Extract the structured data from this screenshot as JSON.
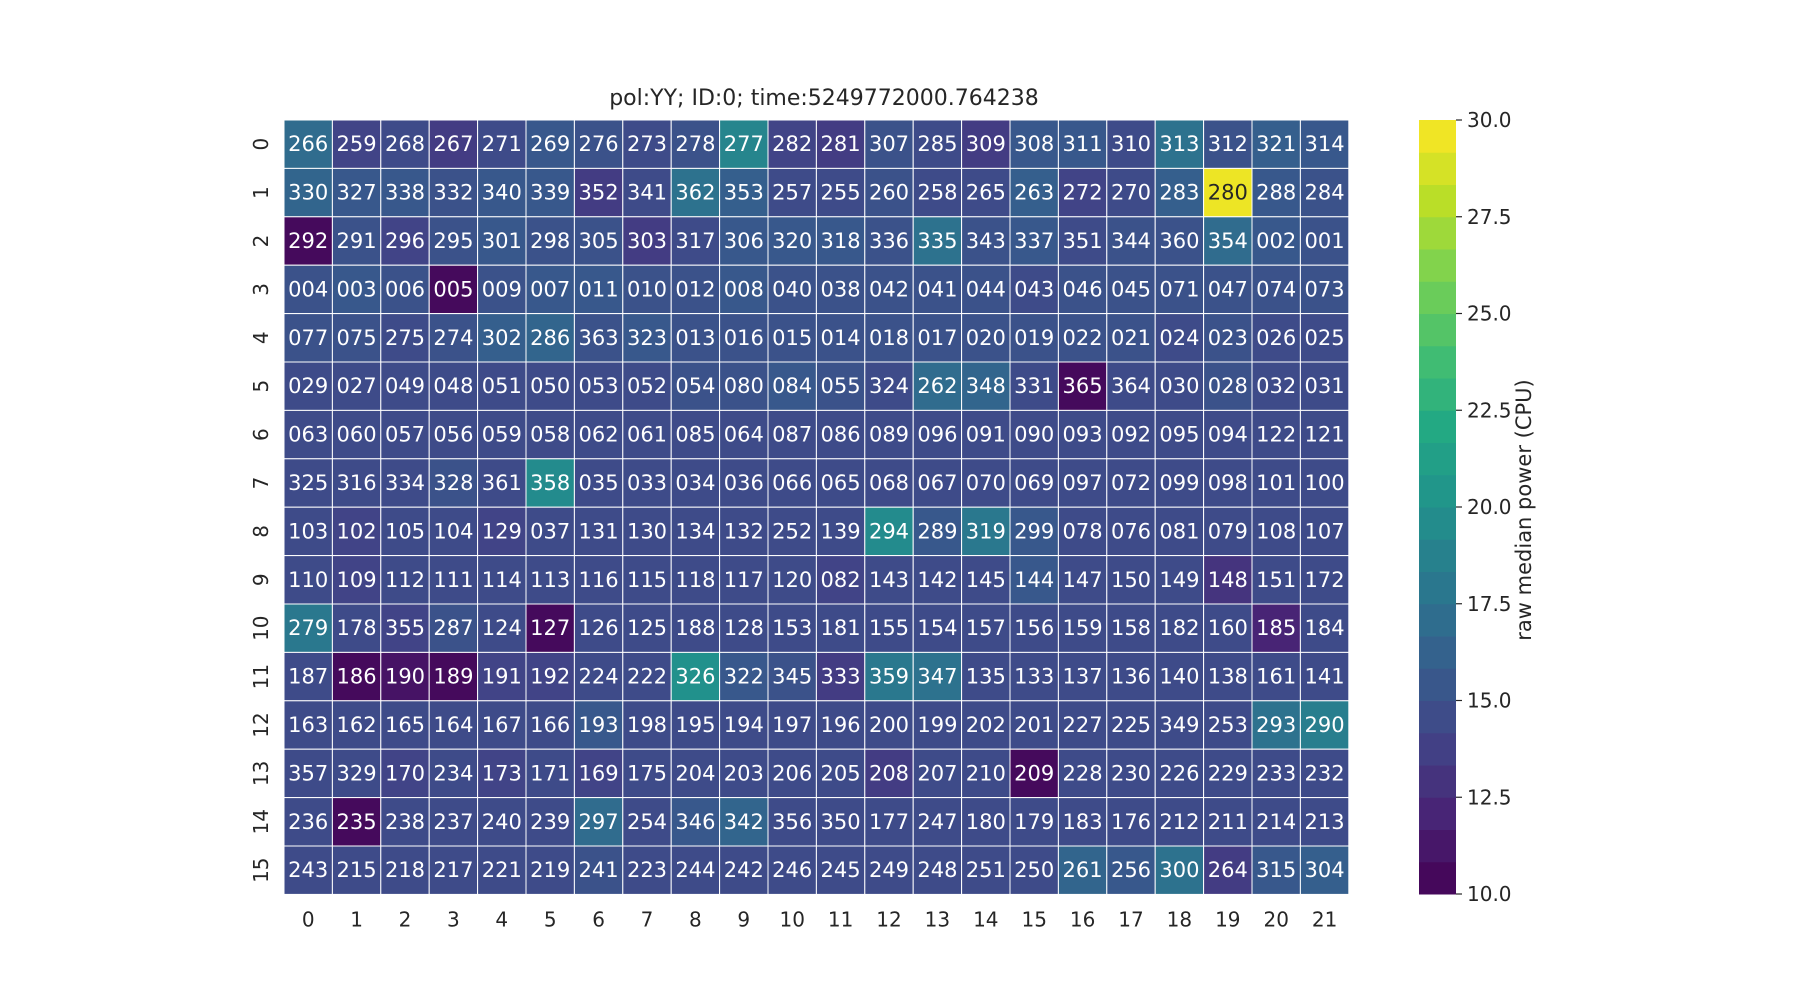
{
  "chart_data": {
    "type": "heatmap",
    "title": "pol:YY; ID:0; time:5249772000.764238",
    "xlabel": "",
    "ylabel": "",
    "x_tick_labels": [
      "0",
      "1",
      "2",
      "3",
      "4",
      "5",
      "6",
      "7",
      "8",
      "9",
      "10",
      "11",
      "12",
      "13",
      "14",
      "15",
      "16",
      "17",
      "18",
      "19",
      "20",
      "21"
    ],
    "y_tick_labels": [
      "0",
      "1",
      "2",
      "3",
      "4",
      "5",
      "6",
      "7",
      "8",
      "9",
      "10",
      "11",
      "12",
      "13",
      "14",
      "15"
    ],
    "annotations": [
      [
        "266",
        "259",
        "268",
        "267",
        "271",
        "269",
        "276",
        "273",
        "278",
        "277",
        "282",
        "281",
        "307",
        "285",
        "309",
        "308",
        "311",
        "310",
        "313",
        "312",
        "321",
        "314"
      ],
      [
        "330",
        "327",
        "338",
        "332",
        "340",
        "339",
        "352",
        "341",
        "362",
        "353",
        "257",
        "255",
        "260",
        "258",
        "265",
        "263",
        "272",
        "270",
        "283",
        "280",
        "288",
        "284"
      ],
      [
        "292",
        "291",
        "296",
        "295",
        "301",
        "298",
        "305",
        "303",
        "317",
        "306",
        "320",
        "318",
        "336",
        "335",
        "343",
        "337",
        "351",
        "344",
        "360",
        "354",
        "002",
        "001"
      ],
      [
        "004",
        "003",
        "006",
        "005",
        "009",
        "007",
        "011",
        "010",
        "012",
        "008",
        "040",
        "038",
        "042",
        "041",
        "044",
        "043",
        "046",
        "045",
        "071",
        "047",
        "074",
        "073"
      ],
      [
        "077",
        "075",
        "275",
        "274",
        "302",
        "286",
        "363",
        "323",
        "013",
        "016",
        "015",
        "014",
        "018",
        "017",
        "020",
        "019",
        "022",
        "021",
        "024",
        "023",
        "026",
        "025"
      ],
      [
        "029",
        "027",
        "049",
        "048",
        "051",
        "050",
        "053",
        "052",
        "054",
        "080",
        "084",
        "055",
        "324",
        "262",
        "348",
        "331",
        "365",
        "364",
        "030",
        "028",
        "032",
        "031"
      ],
      [
        "063",
        "060",
        "057",
        "056",
        "059",
        "058",
        "062",
        "061",
        "085",
        "064",
        "087",
        "086",
        "089",
        "096",
        "091",
        "090",
        "093",
        "092",
        "095",
        "094",
        "122",
        "121"
      ],
      [
        "325",
        "316",
        "334",
        "328",
        "361",
        "358",
        "035",
        "033",
        "034",
        "036",
        "066",
        "065",
        "068",
        "067",
        "070",
        "069",
        "097",
        "072",
        "099",
        "098",
        "101",
        "100"
      ],
      [
        "103",
        "102",
        "105",
        "104",
        "129",
        "037",
        "131",
        "130",
        "134",
        "132",
        "252",
        "139",
        "294",
        "289",
        "319",
        "299",
        "078",
        "076",
        "081",
        "079",
        "108",
        "107"
      ],
      [
        "110",
        "109",
        "112",
        "111",
        "114",
        "113",
        "116",
        "115",
        "118",
        "117",
        "120",
        "082",
        "143",
        "142",
        "145",
        "144",
        "147",
        "150",
        "149",
        "148",
        "151",
        "172"
      ],
      [
        "279",
        "178",
        "355",
        "287",
        "124",
        "127",
        "126",
        "125",
        "188",
        "128",
        "153",
        "181",
        "155",
        "154",
        "157",
        "156",
        "159",
        "158",
        "182",
        "160",
        "185",
        "184"
      ],
      [
        "187",
        "186",
        "190",
        "189",
        "191",
        "192",
        "224",
        "222",
        "326",
        "322",
        "345",
        "333",
        "359",
        "347",
        "135",
        "133",
        "137",
        "136",
        "140",
        "138",
        "161",
        "141"
      ],
      [
        "163",
        "162",
        "165",
        "164",
        "167",
        "166",
        "193",
        "198",
        "195",
        "194",
        "197",
        "196",
        "200",
        "199",
        "202",
        "201",
        "227",
        "225",
        "349",
        "253",
        "293",
        "290"
      ],
      [
        "357",
        "329",
        "170",
        "234",
        "173",
        "171",
        "169",
        "175",
        "204",
        "203",
        "206",
        "205",
        "208",
        "207",
        "210",
        "209",
        "228",
        "230",
        "226",
        "229",
        "233",
        "232"
      ],
      [
        "236",
        "235",
        "238",
        "237",
        "240",
        "239",
        "297",
        "254",
        "346",
        "342",
        "356",
        "350",
        "177",
        "247",
        "180",
        "179",
        "183",
        "176",
        "212",
        "211",
        "214",
        "213"
      ],
      [
        "243",
        "215",
        "218",
        "217",
        "221",
        "219",
        "241",
        "223",
        "244",
        "242",
        "246",
        "245",
        "249",
        "248",
        "251",
        "250",
        "261",
        "256",
        "300",
        "264",
        "315",
        "304"
      ]
    ],
    "values": [
      [
        17.0,
        14.0,
        14.5,
        13.5,
        14.5,
        15.5,
        15.0,
        14.5,
        15.0,
        19.0,
        14.0,
        13.5,
        15.0,
        14.5,
        13.5,
        15.5,
        15.5,
        14.5,
        17.5,
        15.0,
        16.0,
        15.5
      ],
      [
        16.5,
        15.5,
        15.5,
        15.0,
        15.5,
        15.5,
        13.5,
        14.5,
        17.5,
        16.0,
        14.5,
        14.5,
        15.0,
        14.5,
        14.5,
        16.0,
        14.0,
        14.5,
        16.0,
        29.5,
        15.5,
        15.0
      ],
      [
        10.5,
        15.0,
        14.0,
        15.0,
        15.5,
        15.0,
        15.0,
        13.5,
        14.5,
        15.5,
        15.5,
        15.5,
        15.0,
        17.5,
        15.0,
        15.5,
        14.5,
        15.0,
        15.0,
        17.0,
        15.5,
        15.0
      ],
      [
        15.0,
        15.5,
        15.0,
        10.5,
        15.0,
        15.5,
        15.5,
        15.0,
        15.0,
        15.5,
        15.0,
        15.0,
        15.0,
        15.0,
        15.0,
        14.5,
        15.0,
        15.0,
        15.0,
        15.0,
        15.0,
        15.0
      ],
      [
        15.0,
        15.0,
        14.5,
        15.0,
        16.0,
        16.5,
        15.0,
        15.5,
        15.0,
        15.0,
        15.0,
        15.0,
        15.0,
        15.0,
        15.0,
        15.0,
        15.0,
        15.0,
        14.5,
        15.0,
        14.5,
        14.5
      ],
      [
        14.5,
        14.5,
        14.5,
        14.5,
        14.5,
        14.5,
        14.5,
        14.5,
        15.0,
        15.0,
        15.5,
        15.0,
        14.5,
        17.0,
        16.5,
        14.5,
        10.5,
        14.5,
        14.5,
        15.0,
        14.5,
        14.5
      ],
      [
        14.5,
        14.5,
        14.5,
        14.5,
        14.5,
        14.5,
        14.5,
        14.5,
        14.5,
        14.5,
        14.5,
        14.5,
        14.5,
        14.5,
        14.5,
        14.5,
        14.5,
        14.5,
        14.5,
        14.5,
        14.5,
        14.5
      ],
      [
        14.5,
        14.5,
        14.5,
        15.0,
        14.5,
        19.5,
        14.5,
        14.5,
        14.5,
        14.5,
        14.5,
        14.5,
        14.5,
        14.5,
        14.5,
        14.5,
        14.5,
        14.5,
        14.5,
        14.5,
        14.5,
        14.5
      ],
      [
        14.5,
        14.0,
        14.5,
        14.5,
        14.0,
        14.5,
        14.5,
        14.5,
        14.5,
        14.5,
        14.5,
        14.5,
        19.5,
        15.5,
        18.0,
        15.5,
        14.5,
        14.5,
        14.5,
        14.5,
        14.5,
        14.5
      ],
      [
        14.5,
        14.0,
        14.5,
        14.5,
        14.5,
        14.5,
        14.5,
        14.5,
        14.5,
        14.5,
        14.5,
        14.0,
        14.5,
        14.5,
        14.5,
        15.5,
        14.5,
        14.5,
        14.5,
        13.0,
        14.5,
        14.5
      ],
      [
        18.0,
        14.5,
        14.0,
        15.0,
        14.5,
        10.5,
        14.5,
        14.5,
        14.5,
        14.5,
        14.5,
        14.5,
        14.5,
        14.5,
        14.5,
        14.5,
        14.5,
        14.5,
        14.5,
        14.5,
        12.0,
        14.5
      ],
      [
        14.5,
        10.5,
        11.0,
        10.5,
        14.0,
        14.0,
        14.5,
        14.5,
        20.0,
        15.5,
        15.0,
        13.5,
        18.0,
        17.5,
        14.5,
        14.5,
        14.5,
        14.5,
        14.5,
        14.5,
        14.5,
        14.5
      ],
      [
        14.5,
        14.5,
        14.5,
        14.5,
        14.5,
        14.5,
        15.5,
        14.5,
        14.5,
        14.5,
        14.5,
        14.5,
        14.5,
        14.5,
        14.5,
        14.5,
        14.5,
        14.5,
        14.5,
        14.5,
        17.5,
        18.5
      ],
      [
        14.5,
        14.5,
        14.0,
        14.5,
        14.0,
        14.5,
        14.0,
        14.5,
        14.5,
        14.5,
        14.5,
        14.5,
        13.5,
        14.5,
        14.5,
        10.5,
        14.5,
        14.5,
        14.5,
        14.5,
        14.5,
        14.5
      ],
      [
        14.5,
        10.5,
        14.5,
        14.5,
        14.5,
        14.5,
        17.0,
        14.5,
        15.5,
        16.5,
        14.5,
        14.5,
        14.5,
        14.5,
        14.5,
        14.5,
        14.5,
        14.5,
        14.5,
        14.5,
        14.5,
        14.5
      ],
      [
        14.5,
        14.5,
        14.5,
        14.5,
        14.5,
        14.5,
        15.0,
        14.5,
        14.5,
        14.5,
        14.5,
        14.5,
        14.5,
        14.5,
        14.5,
        14.5,
        16.5,
        15.5,
        17.5,
        13.5,
        15.5,
        16.0
      ]
    ],
    "colorbar": {
      "label": "raw median power (CPU)",
      "min": 10.0,
      "max": 30.0,
      "ticks": [
        "10.0",
        "12.5",
        "15.0",
        "17.5",
        "20.0",
        "22.5",
        "25.0",
        "27.5",
        "30.0"
      ],
      "levels": 24,
      "colormap": "viridis"
    },
    "grid": false,
    "legend": "colorbar-right"
  }
}
